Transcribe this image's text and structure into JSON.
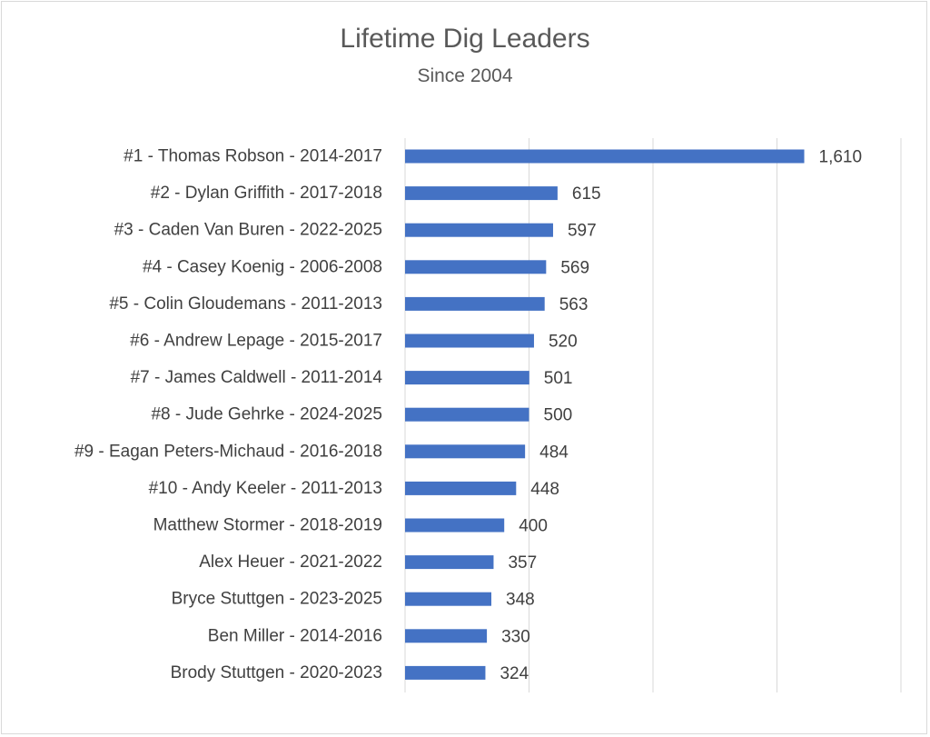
{
  "chart_data": {
    "type": "bar",
    "orientation": "horizontal",
    "title": "Lifetime Dig Leaders",
    "subtitle": "Since 2004",
    "categories": [
      "#1 - Thomas Robson - 2014-2017",
      "#2 - Dylan Griffith - 2017-2018",
      "#3 - Caden Van Buren - 2022-2025",
      "#4 - Casey Koenig - 2006-2008",
      "#5 - Colin Gloudemans - 2011-2013",
      "#6 - Andrew Lepage - 2015-2017",
      "#7 - James Caldwell - 2011-2014",
      "#8 - Jude Gehrke - 2024-2025",
      "#9 - Eagan Peters-Michaud - 2016-2018",
      "#10 - Andy Keeler - 2011-2013",
      "Matthew Stormer - 2018-2019",
      "Alex Heuer - 2021-2022",
      "Bryce Stuttgen  - 2023-2025",
      "Ben Miller - 2014-2016",
      "Brody Stuttgen - 2020-2023"
    ],
    "values": [
      1610,
      615,
      597,
      569,
      563,
      520,
      501,
      500,
      484,
      448,
      400,
      357,
      348,
      330,
      324
    ],
    "value_labels": [
      "1,610",
      "615",
      "597",
      "569",
      "563",
      "520",
      "501",
      "500",
      "484",
      "448",
      "400",
      "357",
      "348",
      "330",
      "324"
    ],
    "xlim": [
      0,
      2000
    ],
    "grid": true,
    "legend": "none",
    "bar_color": "#4472c4",
    "grid_color": "#d9d9d9"
  }
}
